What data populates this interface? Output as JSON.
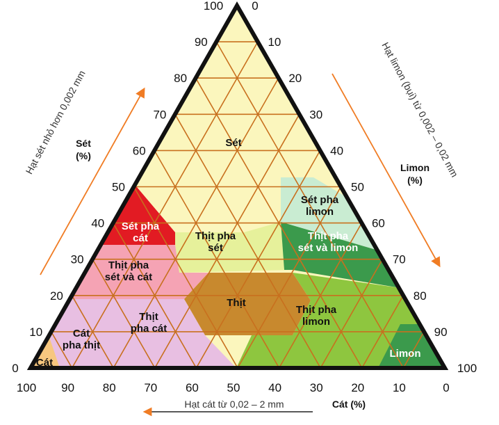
{
  "diagram": {
    "type": "soil texture triangle",
    "zones": [
      {
        "id": "set",
        "label": [
          "Sét"
        ],
        "color": "#fbf6bd"
      },
      {
        "id": "set-pha-cat",
        "label": [
          "Sét pha",
          "cát"
        ],
        "color": "#e21b23"
      },
      {
        "id": "set-pha-limon",
        "label": [
          "Sét pha",
          "limon"
        ],
        "color": "#c9ecd2"
      },
      {
        "id": "thit-pha-set",
        "label": [
          "Thịt pha",
          "sét"
        ],
        "color": "#e6f19b"
      },
      {
        "id": "thit-pha-set-va-limon",
        "label": [
          "Thịt pha",
          "sét và limon"
        ],
        "color": "#3b9a4c"
      },
      {
        "id": "thit-pha-set-va-cat",
        "label": [
          "Thịt pha",
          "sét và cát"
        ],
        "color": "#f5a3b4"
      },
      {
        "id": "thit",
        "label": [
          "Thịt"
        ],
        "color": "#c8892e"
      },
      {
        "id": "thit-pha-limon",
        "label": [
          "Thịt pha",
          "limon"
        ],
        "color": "#8ec63f"
      },
      {
        "id": "thit-pha-cat",
        "label": [
          "Thịt",
          "pha cát"
        ],
        "color": "#e8bfe2"
      },
      {
        "id": "cat-pha-thit",
        "label": [
          "Cát",
          "pha thịt"
        ],
        "color": "#e8bfe2"
      },
      {
        "id": "cat",
        "label": [
          "Cát"
        ],
        "color": "#f7c77f"
      },
      {
        "id": "limon",
        "label": [
          "Limon"
        ],
        "color": "#3b9a4c"
      }
    ],
    "grid_color": "#c8701e",
    "outline_color": "#111111",
    "arrow_color": "#f07c24",
    "clay_ticks": [
      "100",
      "90",
      "80",
      "70",
      "60",
      "50",
      "40",
      "30",
      "20",
      "10",
      "0"
    ],
    "silt_ticks": [
      "0",
      "10",
      "20",
      "30",
      "40",
      "50",
      "60",
      "70",
      "80",
      "90",
      "100"
    ],
    "sand_ticks": [
      "100",
      "90",
      "80",
      "70",
      "60",
      "50",
      "40",
      "30",
      "20",
      "10",
      "0"
    ],
    "clay_axis": {
      "title": [
        "Sét",
        "(%)"
      ],
      "note": "Hạt sét nhỏ hơn 0,002 mm"
    },
    "silt_axis": {
      "title": [
        "Limon",
        "(%)"
      ],
      "note": "Hạt limon (bụi) từ 0,002 – 0,02 mm"
    },
    "sand_axis": {
      "title": "Cát (%)",
      "note": "Hạt cát từ 0,02 – 2 mm"
    }
  }
}
